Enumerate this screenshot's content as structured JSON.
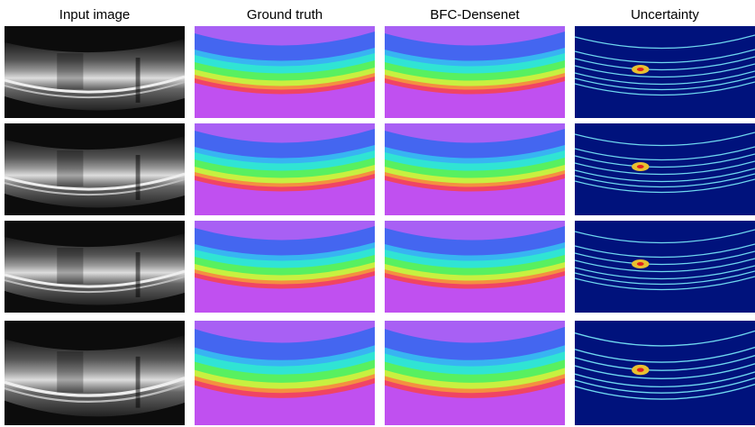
{
  "columns": [
    "Input image",
    "Ground truth",
    "BFC-Densenet",
    "Uncertainty"
  ]
}
